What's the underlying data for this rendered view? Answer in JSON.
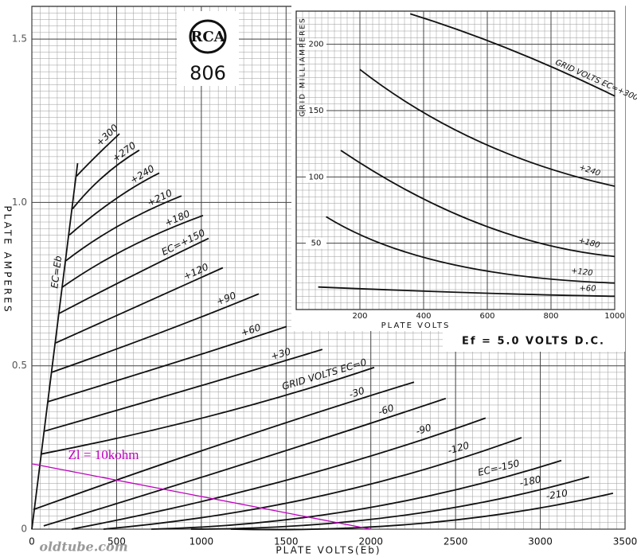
{
  "header": {
    "logo": "RCA",
    "tube": "806"
  },
  "note": "Ef = 5.0 VOLTS D.C.",
  "watermark": "oldtube.com",
  "chart_data": [
    {
      "type": "line",
      "xlabel": "PLATE VOLTS(Eb)",
      "ylabel": "PLATE AMPERES",
      "xlim": [
        0,
        3500
      ],
      "ylim": [
        0,
        1.6
      ],
      "xticks": [
        0,
        500,
        1000,
        1500,
        2000,
        2500,
        3000,
        3500
      ],
      "yticks": [
        0,
        0.5,
        {
          "value": 1,
          "label": "1.0"
        },
        1.5
      ],
      "grid": true,
      "series": [
        {
          "name": "EC=Eb",
          "color": "#111111",
          "x": [
            0,
            270
          ],
          "values": [
            0,
            1.12
          ]
        },
        {
          "name": "+300",
          "color": "#111111",
          "x": [
            263,
            376,
            517
          ],
          "values": [
            1.08,
            1.14,
            1.21
          ]
        },
        {
          "name": "+270",
          "color": "#111111",
          "x": [
            240,
            423,
            634
          ],
          "values": [
            0.98,
            1.08,
            1.16
          ]
        },
        {
          "name": "+240",
          "color": "#111111",
          "x": [
            221,
            493,
            752
          ],
          "values": [
            0.9,
            1.01,
            1.09
          ]
        },
        {
          "name": "+210",
          "color": "#111111",
          "x": [
            197,
            517,
            883
          ],
          "values": [
            0.82,
            0.93,
            1.02
          ]
        },
        {
          "name": "+180",
          "color": "#111111",
          "x": [
            178,
            564,
            1010
          ],
          "values": [
            0.74,
            0.86,
            0.96
          ]
        },
        {
          "name": "EC=+150",
          "color": "#111111",
          "x": [
            160,
            611,
            1043
          ],
          "values": [
            0.66,
            0.78,
            0.89
          ]
        },
        {
          "name": "+120",
          "color": "#111111",
          "x": [
            141,
            658,
            1127
          ],
          "values": [
            0.57,
            0.69,
            0.8
          ]
        },
        {
          "name": "+90",
          "color": "#111111",
          "x": [
            117,
            752,
            1339
          ],
          "values": [
            0.48,
            0.6,
            0.72
          ]
        },
        {
          "name": "+60",
          "color": "#111111",
          "x": [
            94,
            845,
            1503
          ],
          "values": [
            0.39,
            0.51,
            0.62
          ]
        },
        {
          "name": "+30",
          "color": "#111111",
          "x": [
            75,
            939,
            1714
          ],
          "values": [
            0.3,
            0.43,
            0.55
          ]
        },
        {
          "name": "GRID VOLTS EC=0",
          "color": "#111111",
          "x": [
            56,
            1080,
            2020
          ],
          "values": [
            0.23,
            0.35,
            0.495
          ]
        },
        {
          "name": "-30",
          "color": "#111111",
          "x": [
            9,
            1174,
            2255
          ],
          "values": [
            0.06,
            0.27,
            0.45
          ]
        },
        {
          "name": "-60",
          "color": "#111111",
          "x": [
            70,
            1315,
            2442
          ],
          "values": [
            0.01,
            0.21,
            0.4
          ]
        },
        {
          "name": "-90",
          "color": "#111111",
          "x": [
            235,
            1503,
            2677
          ],
          "values": [
            0,
            0.15,
            0.34
          ]
        },
        {
          "name": "-120",
          "color": "#111111",
          "x": [
            423,
            1691,
            2889
          ],
          "values": [
            0,
            0.1,
            0.28
          ]
        },
        {
          "name": "EC=-150",
          "color": "#111111",
          "x": [
            705,
            1926,
            3124
          ],
          "values": [
            0,
            0.06,
            0.21
          ]
        },
        {
          "name": "-180",
          "color": "#111111",
          "x": [
            939,
            2161,
            3288
          ],
          "values": [
            0,
            0.04,
            0.16
          ]
        },
        {
          "name": "-210",
          "color": "#111111",
          "x": [
            1174,
            2348,
            3429
          ],
          "values": [
            0,
            0.02,
            0.11
          ]
        },
        {
          "name": "Zl = 10kohm",
          "color": "#c000c0",
          "x": [
            0,
            2000
          ],
          "values": [
            0.2,
            0
          ]
        }
      ]
    },
    {
      "type": "line",
      "xlabel": "PLATE VOLTS",
      "ylabel": "GRID MILLIAMPERES",
      "xlim": [
        0,
        1000
      ],
      "ylim": [
        0,
        225
      ],
      "xticks": [
        200,
        400,
        600,
        800,
        1000
      ],
      "yticks": [
        50,
        100,
        150,
        200
      ],
      "grid": true,
      "series": [
        {
          "name": "GRID VOLTS EC=+300",
          "color": "#111111",
          "x": [
            358,
            673,
            1000
          ],
          "values": [
            223,
            196,
            161
          ]
        },
        {
          "name": "+240",
          "color": "#111111",
          "x": [
            200,
            572,
            1000
          ],
          "values": [
            181,
            127,
            93
          ]
        },
        {
          "name": "+180",
          "color": "#111111",
          "x": [
            140,
            572,
            1000
          ],
          "values": [
            120,
            65,
            40
          ]
        },
        {
          "name": "+120",
          "color": "#111111",
          "x": [
            94,
            472,
            1000
          ],
          "values": [
            70,
            35,
            20
          ]
        },
        {
          "name": "+60",
          "color": "#111111",
          "x": [
            69,
            572,
            1000
          ],
          "values": [
            17,
            12.5,
            10
          ]
        }
      ]
    }
  ]
}
